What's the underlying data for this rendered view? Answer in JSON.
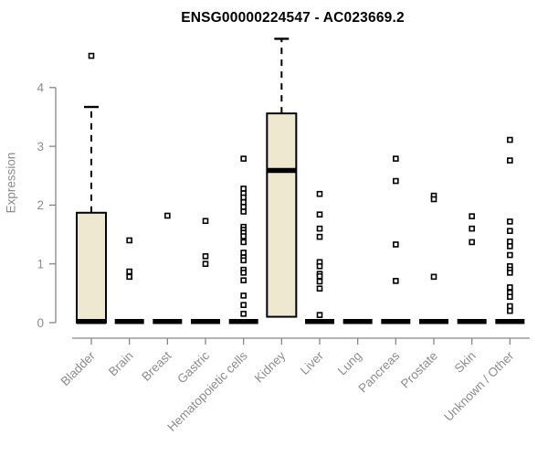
{
  "chart_data": {
    "type": "boxplot",
    "title": "ENSG00000224547 - AC023669.2",
    "xlabel": "",
    "ylabel": "Expression",
    "ylim": [
      0,
      4.9
    ],
    "yticks": [
      0,
      1,
      2,
      3,
      4
    ],
    "grid": false,
    "legend": false,
    "marker": "open-square",
    "categories": [
      "Bladder",
      "Brain",
      "Breast",
      "Gastric",
      "Hematopoietic cells",
      "Kidney",
      "Liver",
      "Lung",
      "Pancreas",
      "Prostate",
      "Skin",
      "Unknown / Other"
    ],
    "boxes": [
      {
        "category": "Bladder",
        "q1": 0,
        "median": 0.02,
        "q3": 1.87,
        "whisker_low": 0,
        "whisker_high": 3.67,
        "points": [
          4.54
        ]
      },
      {
        "category": "Brain",
        "q1": 0,
        "median": 0.02,
        "q3": 0,
        "whisker_low": 0,
        "whisker_high": 0,
        "points": [
          1.4,
          0.87,
          0.78
        ]
      },
      {
        "category": "Breast",
        "q1": 0,
        "median": 0.02,
        "q3": 0,
        "whisker_low": 0,
        "whisker_high": 0,
        "points": [
          1.82
        ]
      },
      {
        "category": "Gastric",
        "q1": 0,
        "median": 0.02,
        "q3": 0,
        "whisker_low": 0,
        "whisker_high": 0,
        "points": [
          1.73,
          1.13,
          1.0
        ]
      },
      {
        "category": "Hematopoietic cells",
        "q1": 0,
        "median": 0.02,
        "q3": 0,
        "whisker_low": 0,
        "whisker_high": 0,
        "points": [
          2.79,
          2.28,
          2.2,
          2.13,
          2.05,
          1.97,
          1.89,
          1.63,
          1.58,
          1.53,
          1.47,
          1.37,
          1.19,
          1.11,
          1.06,
          0.9,
          0.85,
          0.72,
          0.46,
          0.3,
          0.15
        ]
      },
      {
        "category": "Kidney",
        "q1": 0.1,
        "median": 2.59,
        "q3": 3.56,
        "whisker_low": 0.1,
        "whisker_high": 4.83,
        "points": []
      },
      {
        "category": "Liver",
        "q1": 0,
        "median": 0.02,
        "q3": 0,
        "whisker_low": 0,
        "whisker_high": 0,
        "points": [
          2.19,
          1.84,
          1.6,
          1.46,
          1.03,
          0.96,
          0.83,
          0.79,
          0.7,
          0.58,
          0.13
        ]
      },
      {
        "category": "Lung",
        "q1": 0,
        "median": 0.02,
        "q3": 0,
        "whisker_low": 0,
        "whisker_high": 0,
        "points": []
      },
      {
        "category": "Pancreas",
        "q1": 0,
        "median": 0.02,
        "q3": 0,
        "whisker_low": 0,
        "whisker_high": 0,
        "points": [
          2.79,
          2.41,
          1.33,
          0.71
        ]
      },
      {
        "category": "Prostate",
        "q1": 0,
        "median": 0.02,
        "q3": 0,
        "whisker_low": 0,
        "whisker_high": 0,
        "points": [
          2.16,
          2.1,
          0.78
        ]
      },
      {
        "category": "Skin",
        "q1": 0,
        "median": 0.02,
        "q3": 0,
        "whisker_low": 0,
        "whisker_high": 0,
        "points": [
          1.81,
          1.6,
          1.37
        ]
      },
      {
        "category": "Unknown / Other",
        "q1": 0,
        "median": 0.02,
        "q3": 0,
        "whisker_low": 0,
        "whisker_high": 0,
        "points": [
          3.11,
          2.76,
          1.72,
          1.56,
          1.38,
          1.3,
          1.15,
          0.96,
          0.9,
          0.85,
          0.6,
          0.51,
          0.44,
          0.28,
          0.2
        ]
      }
    ],
    "colors": {
      "box_fill": "#EDE8CF",
      "box_border": "#000000",
      "median": "#000000",
      "point_stroke": "#000000",
      "point_fill": "#FFFFFF",
      "axis": "#878787",
      "text": "#8C8C8C",
      "title": "#000000",
      "background": "#FFFFFF"
    }
  }
}
